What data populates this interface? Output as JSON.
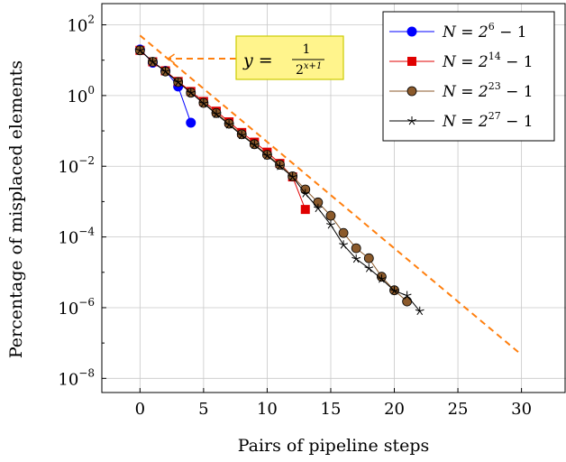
{
  "chart_data": {
    "type": "line",
    "xlabel": "Pairs of pipeline steps",
    "ylabel": "Percentage of misplaced elements",
    "xlim": [
      -3,
      33.5
    ],
    "ylim_log10": [
      -8.4,
      2.6
    ],
    "y_scale": "log",
    "grid": true,
    "legend_position": "top-right",
    "x_ticks": [
      0,
      5,
      10,
      15,
      20,
      25,
      30
    ],
    "x_tick_labels": [
      "0",
      "5",
      "10",
      "15",
      "20",
      "25",
      "30"
    ],
    "y_ticks_log10": [
      2,
      0,
      -2,
      -4,
      -6,
      -8
    ],
    "y_tick_bases": [
      "10",
      "10",
      "10",
      "10",
      "10",
      "10"
    ],
    "y_tick_exps": [
      "2",
      "0",
      "−2",
      "−4",
      "−6",
      "−8"
    ],
    "series": [
      {
        "name": "N = 2^6 − 1",
        "legend_base": "N = 2",
        "legend_exp": "6",
        "legend_tail": " − 1",
        "color": "#0000ff",
        "marker": "circle",
        "x": [
          0,
          1,
          2,
          3,
          4
        ],
        "y": [
          20,
          8.5,
          5,
          1.8,
          0.17
        ]
      },
      {
        "name": "N = 2^14 − 1",
        "legend_base": "N = 2",
        "legend_exp": "14",
        "legend_tail": " − 1",
        "color": "#e00000",
        "marker": "square",
        "x": [
          0,
          1,
          2,
          3,
          4,
          5,
          6,
          7,
          8,
          9,
          10,
          11,
          12,
          13
        ],
        "y": [
          19,
          9,
          5,
          2.5,
          1.3,
          0.68,
          0.36,
          0.18,
          0.09,
          0.048,
          0.025,
          0.012,
          0.005,
          0.0006
        ]
      },
      {
        "name": "N = 2^23 − 1",
        "legend_base": "N = 2",
        "legend_exp": "23",
        "legend_tail": " − 1",
        "color": "#8b5a2b",
        "marker": "brown-circle",
        "x": [
          0,
          1,
          2,
          3,
          4,
          5,
          6,
          7,
          8,
          9,
          10,
          11,
          12,
          13,
          14,
          15,
          16,
          17,
          18,
          19,
          20,
          21
        ],
        "y": [
          19,
          9,
          4.8,
          2.4,
          1.2,
          0.62,
          0.32,
          0.16,
          0.08,
          0.042,
          0.021,
          0.011,
          0.0052,
          0.0022,
          0.00095,
          0.0004,
          0.00013,
          4.8e-05,
          2.5e-05,
          7.5e-06,
          3.1e-06,
          1.5e-06
        ]
      },
      {
        "name": "N = 2^27 − 1",
        "legend_base": "N = 2",
        "legend_exp": "27",
        "legend_tail": " − 1",
        "color": "#000000",
        "marker": "star",
        "x": [
          0,
          1,
          2,
          3,
          4,
          5,
          6,
          7,
          8,
          9,
          10,
          11,
          12,
          13,
          14,
          15,
          16,
          17,
          18,
          19,
          20,
          21,
          22
        ],
        "y": [
          19,
          9,
          4.8,
          2.4,
          1.2,
          0.6,
          0.3,
          0.15,
          0.075,
          0.04,
          0.02,
          0.01,
          0.005,
          0.0017,
          0.00065,
          0.00022,
          6e-05,
          2.4e-05,
          1.3e-05,
          6.5e-06,
          3e-06,
          2.2e-06,
          8e-07
        ]
      }
    ],
    "reference_line": {
      "formula": "y = 1 / 2^(x+1)",
      "label_lhs": "y = ",
      "label_num": "1",
      "label_den_base": "2",
      "label_den_exp": "x+1",
      "color": "#ff7f0e",
      "style": "dashed",
      "x_start": 0,
      "x_end": 30
    },
    "annotation_box_color": "#fff48c",
    "annotation_border_color": "#cccc00"
  }
}
